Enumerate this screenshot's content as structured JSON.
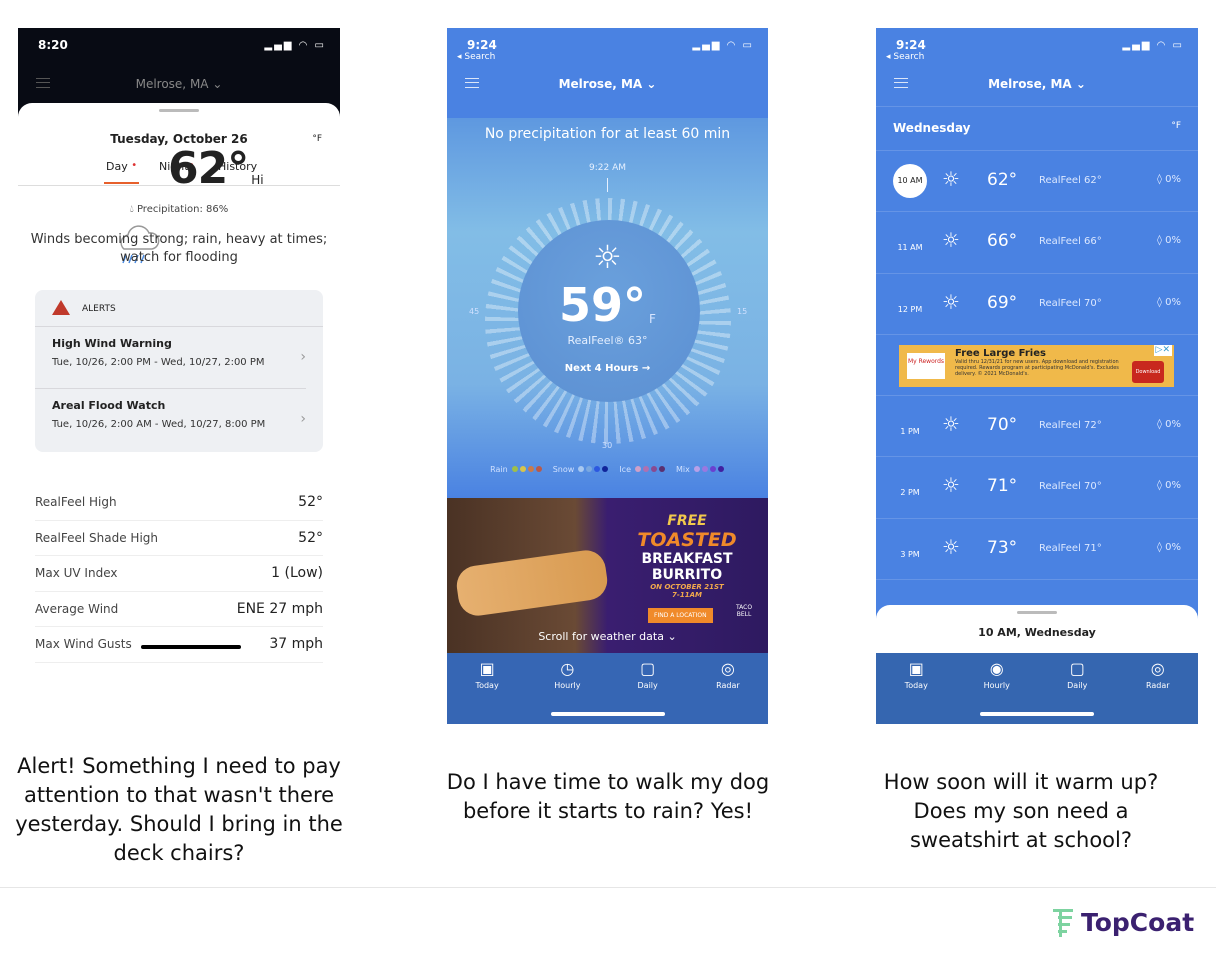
{
  "phone1": {
    "time": "8:20",
    "location": "Melrose, MA",
    "date": "Tuesday, October 26",
    "unit": "°F",
    "tabs": [
      {
        "label": "Day"
      },
      {
        "label": "Night"
      },
      {
        "label": "History"
      }
    ],
    "temp": "62°",
    "temp_label": "Hi",
    "precipitation": "Precipitation: 86%",
    "weather_icon": "cloud-rain-icon",
    "description": "Winds becoming strong; rain, heavy at times; watch for flooding",
    "alerts_title": "ALERTS",
    "alerts": [
      {
        "title": "High Wind Warning",
        "dates": "Tue, 10/26, 2:00 PM - Wed, 10/27, 2:00 PM"
      },
      {
        "title": "Areal Flood Watch",
        "dates": "Tue, 10/26, 2:00 AM - Wed, 10/27, 8:00 PM"
      }
    ],
    "stats": [
      {
        "label": "RealFeel High",
        "value": "52°"
      },
      {
        "label": "RealFeel Shade High",
        "value": "52°"
      },
      {
        "label": "Max UV Index",
        "value": "1 (Low)"
      },
      {
        "label": "Average Wind",
        "value": "ENE 27 mph"
      },
      {
        "label": "Max Wind Gusts",
        "value": "37 mph"
      }
    ]
  },
  "phone2": {
    "time": "9:24",
    "back": "◂ Search",
    "location": "Melrose, MA",
    "minutecast": "No precipitation for at least 60 min",
    "dial_time": "9:22 AM",
    "dial_labels": {
      "left": "45",
      "right": "15",
      "bottom": "30"
    },
    "temp": "59°",
    "unit": "F",
    "realfeel": "RealFeel® 63°",
    "next": "Next 4 Hours →",
    "legend": [
      {
        "label": "Rain",
        "colors": [
          "#9fbf4a",
          "#d8c44a",
          "#c97a4a",
          "#b85a4a"
        ]
      },
      {
        "label": "Snow",
        "colors": [
          "#a8c8f0",
          "#7aa8e0",
          "#2c58e0",
          "#10249a"
        ]
      },
      {
        "label": "Ice",
        "colors": [
          "#d0a0c8",
          "#b070b0",
          "#8a4a90",
          "#5a3070"
        ]
      },
      {
        "label": "Mix",
        "colors": [
          "#b8a0e8",
          "#9a78e0",
          "#6a40d0",
          "#4020a0"
        ]
      }
    ],
    "ad": {
      "line1": "FREE",
      "line2": "TOASTED",
      "line3": "BREAKFAST",
      "line4": "BURRITO",
      "line5": "ON OCTOBER 21ST",
      "line6": "7-11AM",
      "cta": "FIND A LOCATION",
      "brand": "TACO BELL"
    },
    "scroll": "Scroll for weather data ⌄",
    "nav": [
      {
        "label": "Today",
        "icon": "calendar-today-icon"
      },
      {
        "label": "Hourly",
        "icon": "clock-icon"
      },
      {
        "label": "Daily",
        "icon": "calendar-icon"
      },
      {
        "label": "Radar",
        "icon": "radar-icon"
      }
    ]
  },
  "phone3": {
    "time": "9:24",
    "back": "◂ Search",
    "location": "Melrose, MA",
    "day": "Wednesday",
    "unit": "°F",
    "hours_before_ad": [
      {
        "time": "10 AM",
        "temp": "62°",
        "realfeel": "RealFeel 62°",
        "precip": "0%"
      },
      {
        "time": "11 AM",
        "temp": "66°",
        "realfeel": "RealFeel 66°",
        "precip": "0%"
      },
      {
        "time": "12 PM",
        "temp": "69°",
        "realfeel": "RealFeel 70°",
        "precip": "0%"
      }
    ],
    "ad": {
      "brand": "My Rewords",
      "title": "Free Large Fries",
      "body": "Valid thru 12/31/21 for new users. App download and registration required. Rewards program at participating McDonald's. Excludes delivery. © 2021 McDonald's.",
      "cta": "Download"
    },
    "hours_after_ad": [
      {
        "time": "1 PM",
        "temp": "70°",
        "realfeel": "RealFeel 72°",
        "precip": "0%"
      },
      {
        "time": "2 PM",
        "temp": "71°",
        "realfeel": "RealFeel 70°",
        "precip": "0%"
      },
      {
        "time": "3 PM",
        "temp": "73°",
        "realfeel": "RealFeel 71°",
        "precip": "0%"
      }
    ],
    "sheet_title": "10 AM,  Wednesday",
    "active_nav": "Hourly",
    "nav": [
      {
        "label": "Today"
      },
      {
        "label": "Hourly"
      },
      {
        "label": "Daily"
      },
      {
        "label": "Radar"
      }
    ]
  },
  "captions": [
    "Alert! Something I need to pay attention to that wasn't there yesterday.  Should I bring in the deck chairs?",
    "Do I have time to walk my dog before it starts to rain? Yes!",
    "How soon will it warm up? Does my son need a sweatshirt at school?"
  ],
  "logo": {
    "name": "TopCoat",
    "color": "#3b2170",
    "mark_color": "#7dd3a0"
  }
}
